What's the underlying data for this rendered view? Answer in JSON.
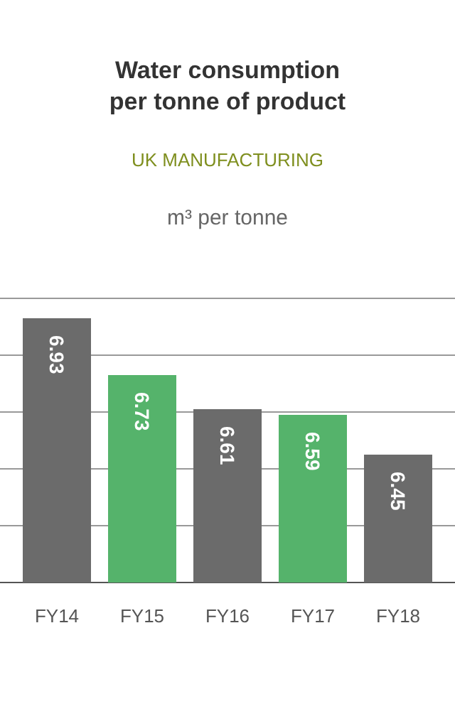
{
  "chart_data": {
    "type": "bar",
    "title": "Water consumption\nper tonne of product",
    "subtitle": "UK MANUFACTURING",
    "ylabel": "m³ per tonne",
    "categories": [
      "FY14",
      "FY15",
      "FY16",
      "FY17",
      "FY18"
    ],
    "values": [
      6.93,
      6.73,
      6.61,
      6.59,
      6.45
    ],
    "colors": [
      "#6b6b6b",
      "#55b36b",
      "#6b6b6b",
      "#55b36b",
      "#6b6b6b"
    ],
    "ylim": [
      6.0,
      7.0
    ],
    "yticks": [
      {
        "value": 6.0,
        "label": null
      },
      {
        "value": 6.2,
        "label": null
      },
      {
        "value": 6.4,
        "label": null
      },
      {
        "value": 6.6,
        "label": null
      },
      {
        "value": 6.8,
        "label": null
      },
      {
        "value": 7.0,
        "label": null
      }
    ],
    "grid": "y",
    "tick_labels": "x",
    "data_labels": true
  }
}
